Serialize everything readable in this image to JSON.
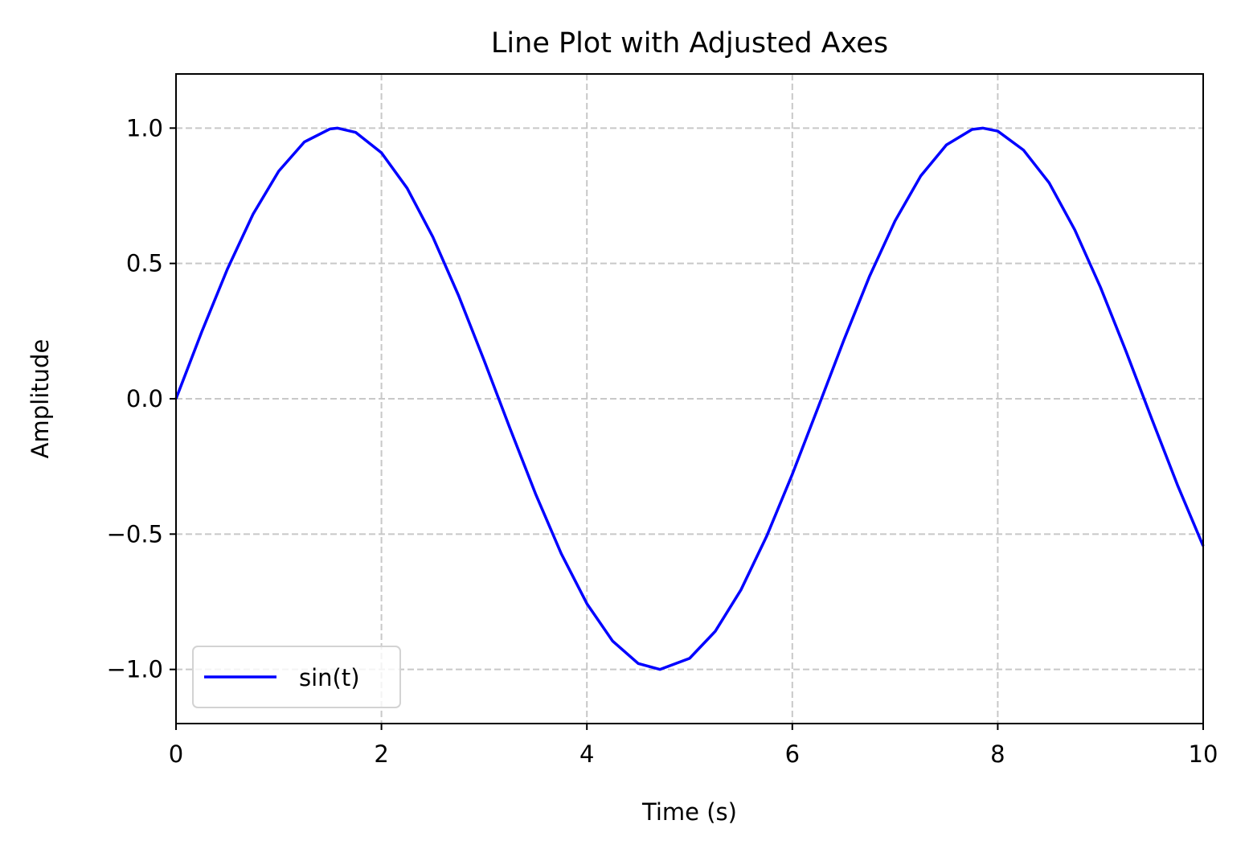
{
  "chart_data": {
    "type": "line",
    "title": "Line Plot with Adjusted Axes",
    "xlabel": "Time (s)",
    "ylabel": "Amplitude",
    "xlim": [
      0,
      10
    ],
    "ylim": [
      -1.2,
      1.2
    ],
    "xticks": [
      0,
      2,
      4,
      6,
      8,
      10
    ],
    "yticks": [
      -1.0,
      -0.5,
      0.0,
      0.5,
      1.0
    ],
    "xtick_labels": [
      "0",
      "2",
      "4",
      "6",
      "8",
      "10"
    ],
    "ytick_labels": [
      "−1.0",
      "−0.5",
      "0.0",
      "0.5",
      "1.0"
    ],
    "grid": true,
    "legend_position": "lower-left",
    "series": [
      {
        "name": "sin(t)",
        "color": "#0000ff",
        "x": [
          0,
          0.25,
          0.5,
          0.75,
          1,
          1.25,
          1.5,
          1.5708,
          1.75,
          2,
          2.25,
          2.5,
          2.75,
          3,
          3.25,
          3.5,
          3.75,
          4,
          4.25,
          4.5,
          4.7124,
          5,
          5.25,
          5.5,
          5.75,
          6,
          6.25,
          6.5,
          6.75,
          7,
          7.25,
          7.5,
          7.75,
          7.854,
          8,
          8.25,
          8.5,
          8.75,
          9,
          9.25,
          9.5,
          9.75,
          10
        ],
        "y": [
          0,
          0.247,
          0.479,
          0.682,
          0.841,
          0.949,
          0.997,
          1.0,
          0.984,
          0.909,
          0.778,
          0.598,
          0.382,
          0.141,
          -0.108,
          -0.351,
          -0.572,
          -0.757,
          -0.895,
          -0.978,
          -1.0,
          -0.959,
          -0.859,
          -0.706,
          -0.508,
          -0.279,
          -0.033,
          0.215,
          0.451,
          0.657,
          0.823,
          0.938,
          0.995,
          1.0,
          0.989,
          0.919,
          0.798,
          0.624,
          0.412,
          0.174,
          -0.075,
          -0.319,
          -0.544
        ]
      }
    ]
  }
}
